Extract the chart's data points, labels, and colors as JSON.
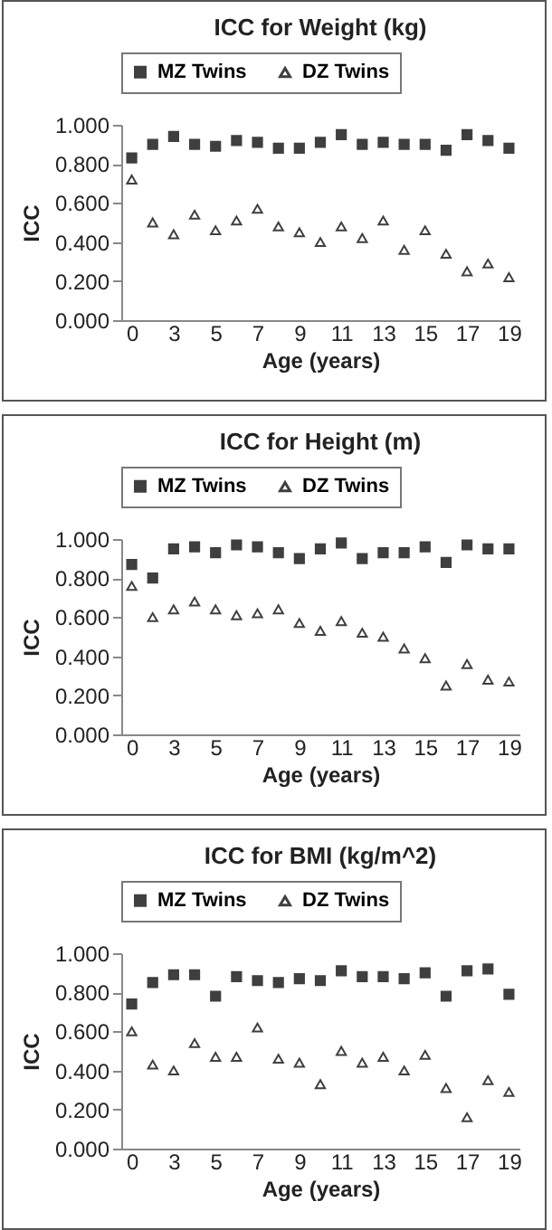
{
  "chart_data": [
    {
      "type": "scatter",
      "title": "ICC for Weight (kg)",
      "xlabel": "Age (years)",
      "ylabel": "ICC",
      "categories": [
        "0",
        null,
        "3",
        null,
        "5",
        null,
        "7",
        null,
        "9",
        null,
        "11",
        null,
        "13",
        null,
        "15",
        null,
        "17",
        null,
        "19"
      ],
      "ylim": [
        0,
        1
      ],
      "yticks": [
        {
          "value": 0,
          "label": "0.000"
        },
        {
          "value": 0.2,
          "label": "0.200"
        },
        {
          "value": 0.4,
          "label": "0.400"
        },
        {
          "value": 0.6,
          "label": "0.600"
        },
        {
          "value": 0.8,
          "label": "0.800"
        },
        {
          "value": 1,
          "label": "1.000"
        }
      ],
      "legend": "top",
      "grid": false,
      "series": [
        {
          "name": "MZ Twins",
          "color": "#3f3f3f",
          "marker": "square",
          "values": [
            0.83,
            0.9,
            0.94,
            0.9,
            0.89,
            0.92,
            0.91,
            0.88,
            0.88,
            0.91,
            0.95,
            0.9,
            0.91,
            0.9,
            0.9,
            0.87,
            0.95,
            0.92,
            0.88
          ]
        },
        {
          "name": "DZ Twins",
          "color": "#3f3f3f",
          "marker": "triangle",
          "values": [
            0.72,
            0.5,
            0.44,
            0.54,
            0.46,
            0.51,
            0.57,
            0.48,
            0.45,
            0.4,
            0.48,
            0.42,
            0.51,
            0.36,
            0.46,
            0.34,
            0.25,
            0.29,
            0.22
          ]
        }
      ]
    },
    {
      "type": "scatter",
      "title": "ICC for Height (m)",
      "xlabel": "Age (years)",
      "ylabel": "ICC",
      "categories": [
        "0",
        null,
        "3",
        null,
        "5",
        null,
        "7",
        null,
        "9",
        null,
        "11",
        null,
        "13",
        null,
        "15",
        null,
        "17",
        null,
        "19"
      ],
      "ylim": [
        0,
        1
      ],
      "yticks": [
        {
          "value": 0,
          "label": "0.000"
        },
        {
          "value": 0.2,
          "label": "0.200"
        },
        {
          "value": 0.4,
          "label": "0.400"
        },
        {
          "value": 0.6,
          "label": "0.600"
        },
        {
          "value": 0.8,
          "label": "0.800"
        },
        {
          "value": 1,
          "label": "1.000"
        }
      ],
      "legend": "top",
      "grid": false,
      "series": [
        {
          "name": "MZ Twins",
          "color": "#3f3f3f",
          "marker": "square",
          "values": [
            0.87,
            0.8,
            0.95,
            0.96,
            0.93,
            0.97,
            0.96,
            0.93,
            0.9,
            0.95,
            0.98,
            0.9,
            0.93,
            0.93,
            0.96,
            0.88,
            0.97,
            0.95,
            0.95
          ]
        },
        {
          "name": "DZ Twins",
          "color": "#3f3f3f",
          "marker": "triangle",
          "values": [
            0.76,
            0.6,
            0.64,
            0.68,
            0.64,
            0.61,
            0.62,
            0.64,
            0.57,
            0.53,
            0.58,
            0.52,
            0.5,
            0.44,
            0.39,
            0.25,
            0.36,
            0.28,
            0.27
          ]
        }
      ]
    },
    {
      "type": "scatter",
      "title": "ICC for BMI (kg/m^2)",
      "xlabel": "Age (years)",
      "ylabel": "ICC",
      "categories": [
        "0",
        null,
        "3",
        null,
        "5",
        null,
        "7",
        null,
        "9",
        null,
        "11",
        null,
        "13",
        null,
        "15",
        null,
        "17",
        null,
        "19"
      ],
      "ylim": [
        0,
        1
      ],
      "yticks": [
        {
          "value": 0,
          "label": "0.000"
        },
        {
          "value": 0.2,
          "label": "0.200"
        },
        {
          "value": 0.4,
          "label": "0.400"
        },
        {
          "value": 0.6,
          "label": "0.600"
        },
        {
          "value": 0.8,
          "label": "0.800"
        },
        {
          "value": 1,
          "label": "1.000"
        }
      ],
      "legend": "top",
      "grid": false,
      "series": [
        {
          "name": "MZ Twins",
          "color": "#3f3f3f",
          "marker": "square",
          "values": [
            0.74,
            0.85,
            0.89,
            0.89,
            0.78,
            0.88,
            0.86,
            0.85,
            0.87,
            0.86,
            0.91,
            0.88,
            0.88,
            0.87,
            0.9,
            0.78,
            0.91,
            0.92,
            0.79
          ]
        },
        {
          "name": "DZ Twins",
          "color": "#3f3f3f",
          "marker": "triangle",
          "values": [
            0.6,
            0.43,
            0.4,
            0.54,
            0.47,
            0.47,
            0.62,
            0.46,
            0.44,
            0.33,
            0.5,
            0.44,
            0.47,
            0.4,
            0.48,
            0.31,
            0.16,
            0.35,
            0.29
          ]
        }
      ]
    }
  ]
}
